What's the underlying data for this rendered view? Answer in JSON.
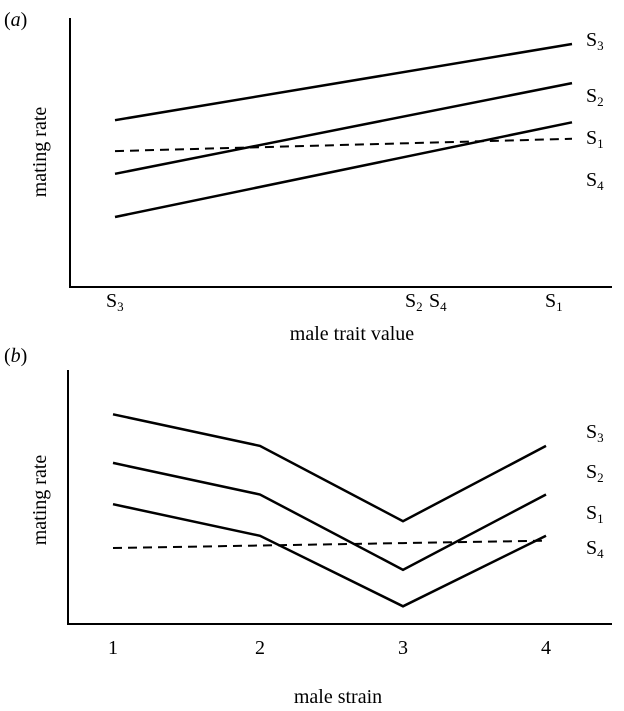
{
  "chart_data": [
    {
      "type": "line",
      "panel_label_letter": "a",
      "xlabel": "male trait value",
      "ylabel": "mating rate",
      "x_tick_labels": [
        {
          "main": "S",
          "sub": "3"
        },
        {
          "main": "S",
          "sub": "2"
        },
        {
          "main": "S",
          "sub": "4"
        },
        {
          "main": "S",
          "sub": "1"
        }
      ],
      "series": [
        {
          "name_main": "S",
          "name_sub": "3",
          "style": "solid",
          "points": [
            [
              0.0,
              0.63
            ],
            [
              1.0,
              1.0
            ]
          ]
        },
        {
          "name_main": "S",
          "name_sub": "2",
          "style": "solid",
          "points": [
            [
              0.0,
              0.37
            ],
            [
              1.0,
              0.81
            ]
          ]
        },
        {
          "name_main": "S",
          "name_sub": "1",
          "style": "solid",
          "points": [
            [
              0.0,
              0.16
            ],
            [
              1.0,
              0.62
            ]
          ]
        },
        {
          "name_main": "S",
          "name_sub": "4",
          "style": "dashed",
          "points": [
            [
              0.0,
              0.48
            ],
            [
              1.0,
              0.54
            ]
          ]
        }
      ],
      "xlim": [
        0,
        1
      ],
      "ylim": [
        0,
        1
      ],
      "grid": false,
      "legend": "series labels at right end of lines"
    },
    {
      "type": "line",
      "panel_label_letter": "b",
      "xlabel": "male strain",
      "ylabel": "mating rate",
      "categories": [
        "1",
        "2",
        "3",
        "4"
      ],
      "series": [
        {
          "name_main": "S",
          "name_sub": "3",
          "style": "solid",
          "values": [
            0.83,
            0.7,
            0.39,
            0.7
          ]
        },
        {
          "name_main": "S",
          "name_sub": "2",
          "style": "solid",
          "values": [
            0.63,
            0.5,
            0.19,
            0.5
          ]
        },
        {
          "name_main": "S",
          "name_sub": "1",
          "style": "solid",
          "values": [
            0.46,
            0.33,
            0.04,
            0.33
          ]
        },
        {
          "name_main": "S",
          "name_sub": "4",
          "style": "dashed",
          "values": [
            0.28,
            0.29,
            0.3,
            0.31
          ]
        }
      ],
      "ylim": [
        0,
        1
      ],
      "grid": false,
      "legend": "series labels at right of chart"
    }
  ]
}
